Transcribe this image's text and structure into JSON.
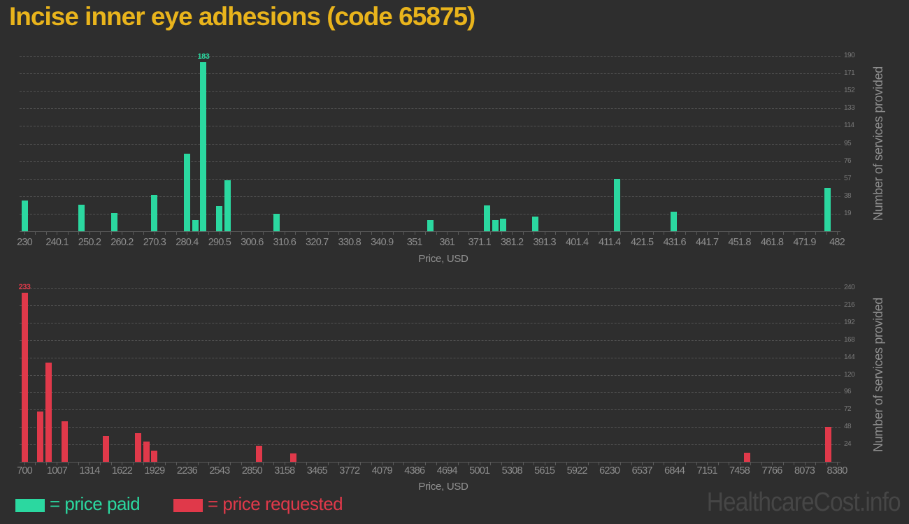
{
  "title": "Incise inner eye adhesions (code 65875)",
  "watermark": "HealthcareCost.info",
  "legend": {
    "paid_label": "= price paid",
    "requested_label": "= price requested"
  },
  "colors": {
    "background": "#2e2e2e",
    "paid": "#2bd8a0",
    "requested": "#e0394a",
    "title": "#e9b41c",
    "axis_text": "#8d8d8d",
    "y_tick_text": "#7a7a7a",
    "grid": "#535353",
    "watermark": "#464646"
  },
  "chart_data": [
    {
      "type": "bar",
      "series": "price paid",
      "color": "#2bd8a0",
      "xlabel": "Price, USD",
      "ylabel": "Number of services provided",
      "x_range": [
        230,
        482
      ],
      "ylim": [
        0,
        190
      ],
      "grid": "horizontal-dashed",
      "y_ticks": [
        19,
        38,
        57,
        76,
        95,
        114,
        133,
        152,
        171,
        190
      ],
      "x_tick_labels": [
        "230",
        "240.1",
        "250.2",
        "260.2",
        "270.3",
        "280.4",
        "290.5",
        "300.6",
        "310.6",
        "320.7",
        "330.8",
        "340.9",
        "351",
        "361",
        "371.1",
        "381.2",
        "391.3",
        "401.4",
        "411.4",
        "421.5",
        "431.6",
        "441.7",
        "451.8",
        "461.8",
        "471.9",
        "482"
      ],
      "points": [
        [
          230,
          33
        ],
        [
          247.7,
          29
        ],
        [
          257.9,
          20
        ],
        [
          270.3,
          39
        ],
        [
          280.4,
          84
        ],
        [
          283,
          12
        ],
        [
          285.5,
          183
        ],
        [
          290.3,
          27
        ],
        [
          292.9,
          55
        ],
        [
          308.1,
          19
        ],
        [
          355.9,
          12
        ],
        [
          373.5,
          28
        ],
        [
          376,
          12
        ],
        [
          378.5,
          14
        ],
        [
          388.5,
          16
        ],
        [
          413.7,
          57
        ],
        [
          431.3,
          21
        ],
        [
          479,
          47
        ]
      ],
      "peak_label": "183"
    },
    {
      "type": "bar",
      "series": "price requested",
      "color": "#e0394a",
      "xlabel": "Price, USD",
      "ylabel": "Number of services provided",
      "x_range": [
        700,
        8380
      ],
      "ylim": [
        0,
        240
      ],
      "grid": "horizontal-dashed",
      "y_ticks": [
        24,
        48,
        72,
        96,
        120,
        144,
        168,
        192,
        216,
        240
      ],
      "x_tick_labels": [
        "700",
        "1007",
        "1314",
        "1622",
        "1929",
        "2236",
        "2543",
        "2850",
        "3158",
        "3465",
        "3772",
        "4079",
        "4386",
        "4694",
        "5001",
        "5308",
        "5615",
        "5922",
        "6230",
        "6537",
        "6844",
        "7151",
        "7458",
        "7766",
        "8073",
        "8380"
      ],
      "points": [
        [
          700,
          233
        ],
        [
          847,
          69
        ],
        [
          931,
          137
        ],
        [
          1083,
          56
        ],
        [
          1467,
          36
        ],
        [
          1774,
          40
        ],
        [
          1851,
          28
        ],
        [
          1929,
          15
        ],
        [
          2920,
          22
        ],
        [
          3240,
          12
        ],
        [
          7528,
          13
        ],
        [
          8295,
          48
        ]
      ],
      "peak_label": "233"
    }
  ]
}
